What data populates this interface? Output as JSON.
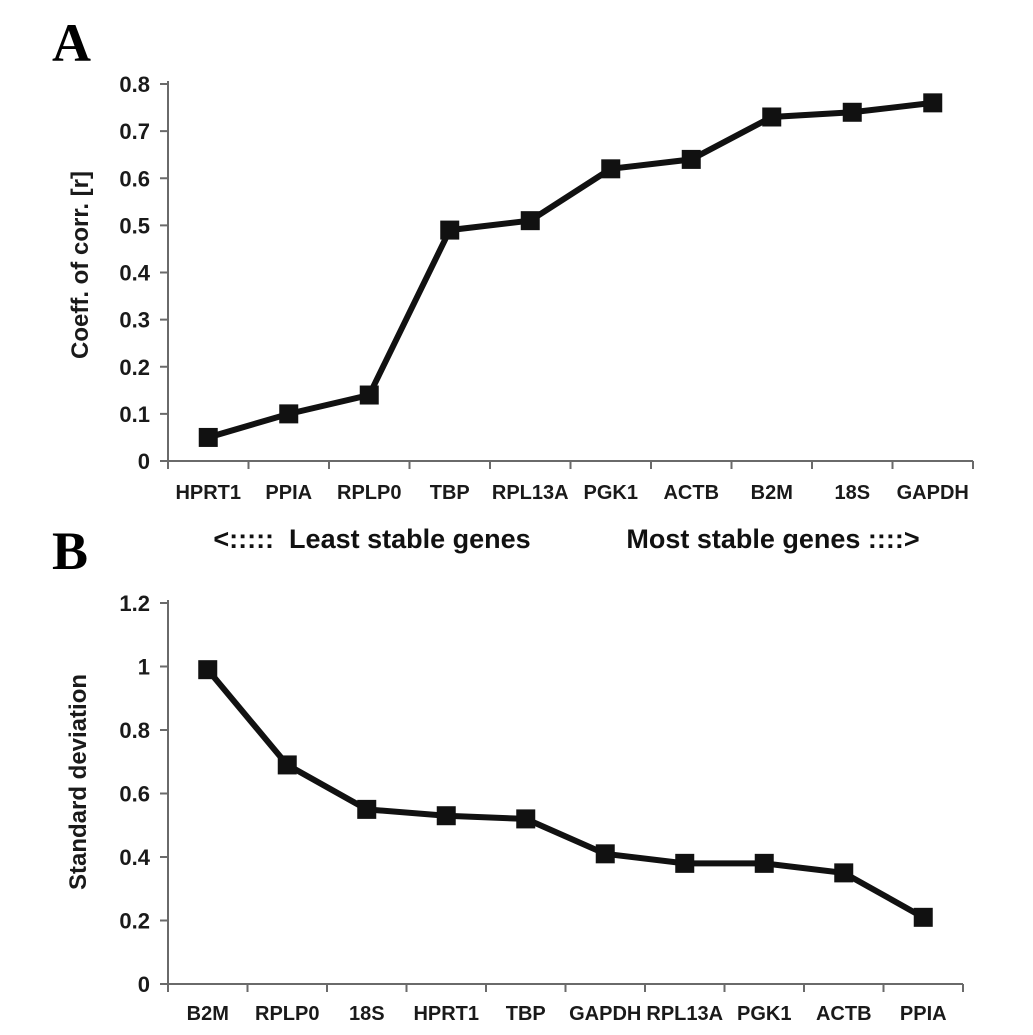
{
  "figure": {
    "background": "#ffffff",
    "colors": {
      "series_line": "#111111",
      "marker": "#111111",
      "axis": "#6a6a6a",
      "text": "#1a1a1a"
    }
  },
  "chart_data": [
    {
      "type": "line",
      "panel_label": "A",
      "title": "",
      "xlabel": "",
      "ylabel": "Coeff. of corr. [r]",
      "categories": [
        "HPRT1",
        "PPIA",
        "RPLP0",
        "TBP",
        "RPL13A",
        "PGK1",
        "ACTB",
        "B2M",
        "18S",
        "GAPDH"
      ],
      "values": [
        0.05,
        0.1,
        0.14,
        0.49,
        0.51,
        0.62,
        0.64,
        0.73,
        0.74,
        0.76
      ],
      "ylim": [
        0,
        0.8
      ],
      "ytick_values": [
        0,
        0.1,
        0.2,
        0.3,
        0.4,
        0.5,
        0.6,
        0.7,
        0.8
      ],
      "ytick_labels": [
        "0",
        "0.1",
        "0.2",
        "0.3",
        "0.4",
        "0.5",
        "0.6",
        "0.7",
        "0.8"
      ],
      "grid": false,
      "legend": "none",
      "marker": "square",
      "annotation_left": "<:::::  Least stable genes",
      "annotation_right": "Most stable genes ::::>"
    },
    {
      "type": "line",
      "panel_label": "B",
      "title": "",
      "xlabel": "",
      "ylabel": "Standard deviation",
      "categories": [
        "B2M",
        "RPLP0",
        "18S",
        "HPRT1",
        "TBP",
        "GAPDH",
        "RPL13A",
        "PGK1",
        "ACTB",
        "PPIA"
      ],
      "values": [
        0.99,
        0.69,
        0.55,
        0.53,
        0.52,
        0.41,
        0.38,
        0.38,
        0.35,
        0.21
      ],
      "ylim": [
        0,
        1.2
      ],
      "ytick_values": [
        0,
        0.2,
        0.4,
        0.6,
        0.8,
        1,
        1.2
      ],
      "ytick_labels": [
        "0",
        "0.2",
        "0.4",
        "0.6",
        "0.8",
        "1",
        "1.2"
      ],
      "grid": false,
      "legend": "none",
      "marker": "square",
      "annotation_left": "",
      "annotation_right": ""
    }
  ]
}
